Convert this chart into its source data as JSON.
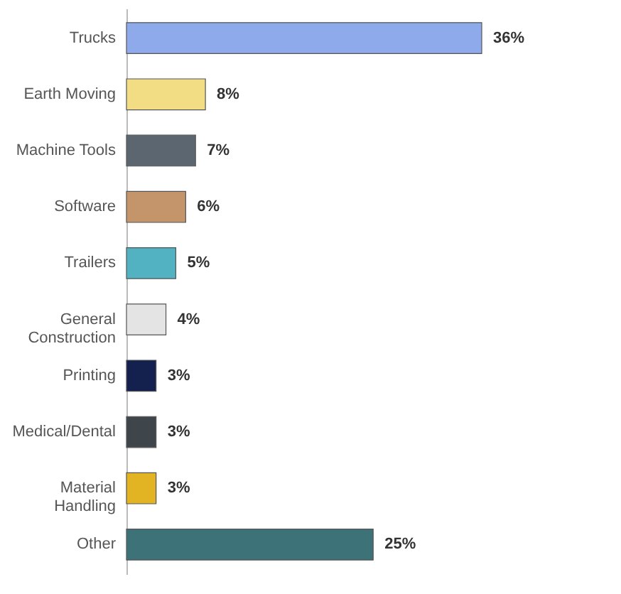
{
  "chart_data": {
    "type": "bar",
    "orientation": "horizontal",
    "categories": [
      "Trucks",
      "Earth Moving",
      "Machine Tools",
      "Software",
      "Trailers",
      "General Construction",
      "Printing",
      "Medical/Dental",
      "Material Handling",
      "Other"
    ],
    "values": [
      36,
      8,
      7,
      6,
      5,
      4,
      3,
      3,
      3,
      25
    ],
    "colors": [
      "#8eaaea",
      "#f2dc84",
      "#5c6670",
      "#c4946a",
      "#52b2c2",
      "#e4e4e4",
      "#14204e",
      "#3e464c",
      "#e2b424",
      "#3c7278"
    ],
    "value_labels": [
      "36%",
      "8%",
      "7%",
      "6%",
      "5%",
      "4%",
      "3%",
      "3%",
      "3%",
      "25%"
    ]
  }
}
